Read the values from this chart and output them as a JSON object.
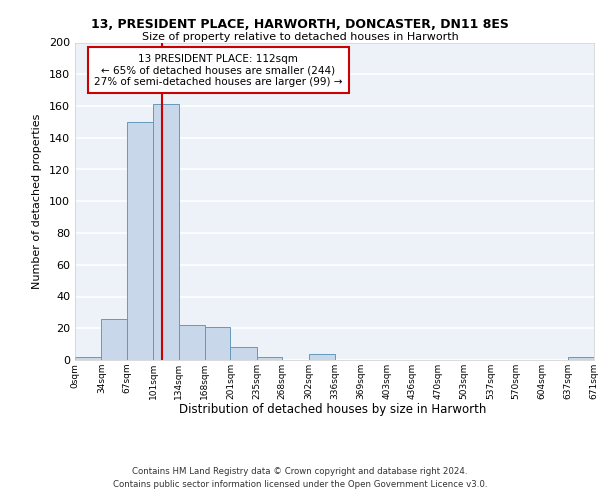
{
  "title1": "13, PRESIDENT PLACE, HARWORTH, DONCASTER, DN11 8ES",
  "title2": "Size of property relative to detached houses in Harworth",
  "xlabel": "Distribution of detached houses by size in Harworth",
  "ylabel": "Number of detached properties",
  "bin_edges": [
    0,
    34,
    67,
    101,
    134,
    168,
    201,
    235,
    268,
    302,
    336,
    369,
    403,
    436,
    470,
    503,
    537,
    570,
    604,
    637,
    671
  ],
  "bar_heights": [
    2,
    26,
    150,
    161,
    22,
    21,
    8,
    2,
    0,
    4,
    0,
    0,
    0,
    0,
    0,
    0,
    0,
    0,
    0,
    2
  ],
  "bar_color": "#c8d8ea",
  "bar_edgecolor": "#6699bb",
  "bg_color": "#edf2f8",
  "grid_color": "#ffffff",
  "property_size": 112,
  "red_line_color": "#cc0000",
  "annotation_text": "13 PRESIDENT PLACE: 112sqm\n← 65% of detached houses are smaller (244)\n27% of semi-detached houses are larger (99) →",
  "annotation_box_color": "#ffffff",
  "annotation_edge_color": "#cc0000",
  "ylim": [
    0,
    200
  ],
  "yticks": [
    0,
    20,
    40,
    60,
    80,
    100,
    120,
    140,
    160,
    180,
    200
  ],
  "footnote1": "Contains HM Land Registry data © Crown copyright and database right 2024.",
  "footnote2": "Contains public sector information licensed under the Open Government Licence v3.0."
}
